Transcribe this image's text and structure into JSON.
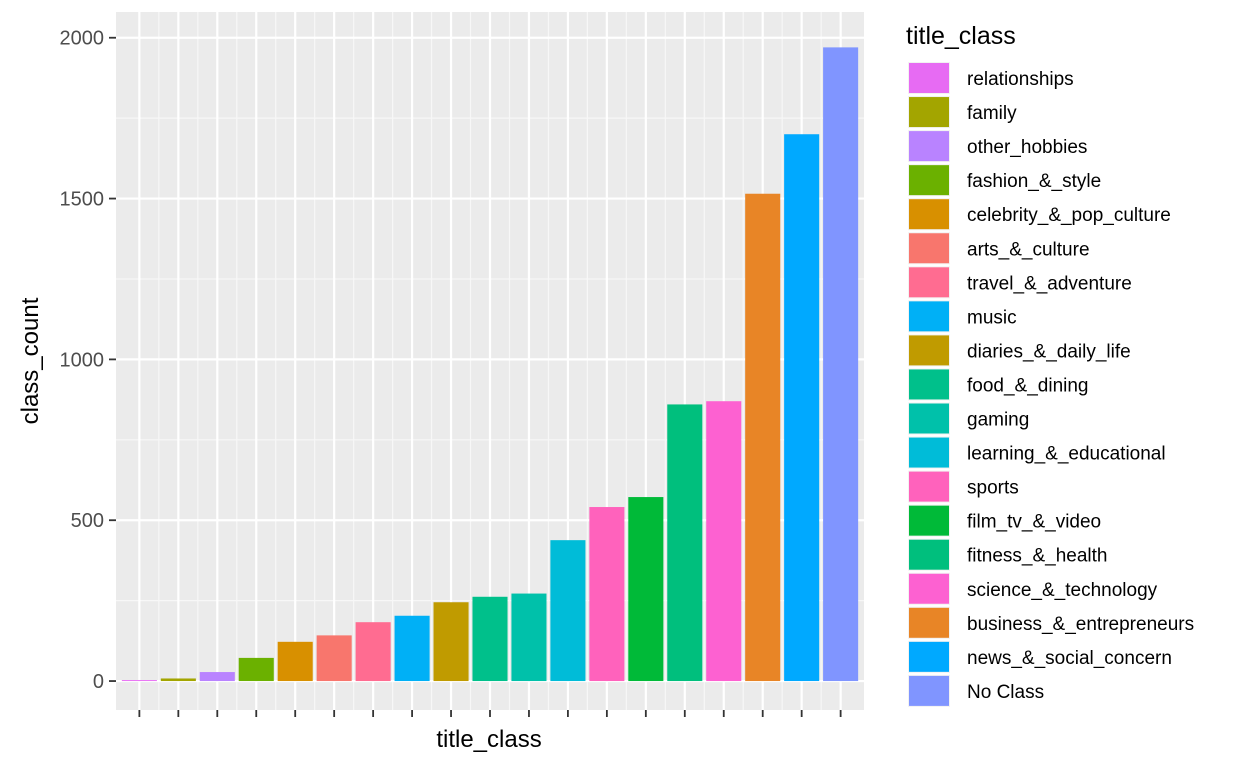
{
  "chart_data": {
    "type": "bar",
    "xlabel": "title_class",
    "ylabel": "class_count",
    "ylim": [
      -90,
      2080
    ],
    "yticks": [
      0,
      500,
      1000,
      1500,
      2000
    ],
    "y_minor_ticks": [
      250,
      750,
      1250,
      1750
    ],
    "grid": true,
    "x_tick_labels_shown": false,
    "legend": {
      "title": "title_class",
      "position": "right"
    },
    "categories": [
      "relationships",
      "family",
      "other_hobbies",
      "fashion_&_style",
      "celebrity_&_pop_culture",
      "arts_&_culture",
      "travel_&_adventure",
      "music",
      "diaries_&_daily_life",
      "food_&_dining",
      "gaming",
      "learning_&_educational",
      "sports",
      "film_tv_&_video",
      "fitness_&_health",
      "science_&_technology",
      "business_&_entrepreneurs",
      "news_&_social_concern",
      "No Class"
    ],
    "values": [
      3,
      8,
      28,
      72,
      122,
      142,
      183,
      203,
      245,
      262,
      272,
      438,
      541,
      572,
      860,
      870,
      1515,
      1700,
      1970
    ],
    "colors": [
      "#E76BF3",
      "#A3A500",
      "#B983FF",
      "#6BB100",
      "#D89000",
      "#F8766D",
      "#FF6C91",
      "#00B0F6",
      "#C09B00",
      "#00C08B",
      "#00C1AA",
      "#00BCD8",
      "#FF62BC",
      "#00BA38",
      "#00BF7D",
      "#FD61D1",
      "#E88526",
      "#00A9FF",
      "#8095FF"
    ]
  }
}
